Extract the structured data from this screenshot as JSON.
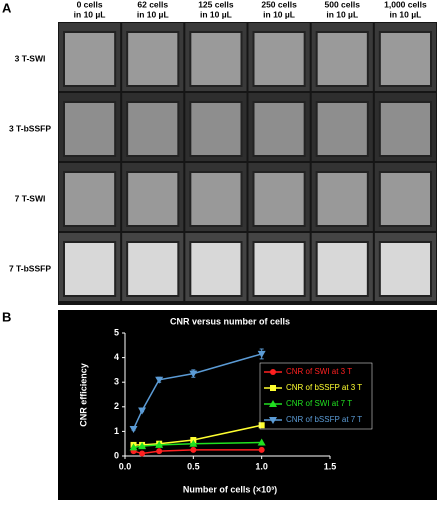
{
  "panel_a": {
    "label": "A",
    "columns": [
      [
        "0 cells",
        "in 10 µL"
      ],
      [
        "62 cells",
        "in 10 µL"
      ],
      [
        "125 cells",
        "in 10 µL"
      ],
      [
        "250 cells",
        "in 10 µL"
      ],
      [
        "500 cells",
        "in 10 µL"
      ],
      [
        "1,000 cells",
        "in 10 µL"
      ]
    ],
    "rows": [
      "3 T-SWI",
      "3 T-bSSFP",
      "7 T-SWI",
      "7 T-bSSFP"
    ]
  },
  "panel_b_label": "B",
  "chart_data": {
    "type": "line",
    "title": "CNR versus number of cells",
    "x_label": "Number of cells (×10³)",
    "y_label": "CNR efficiency",
    "x": [
      0.0625,
      0.125,
      0.25,
      0.5,
      1.0
    ],
    "series": [
      {
        "name": "CNR of SWI at 3 T",
        "color": "#ff2020",
        "marker": "circle",
        "values": [
          0.2,
          0.1,
          0.2,
          0.25,
          0.25
        ]
      },
      {
        "name": "CNR of bSSFP at 3 T",
        "color": "#ffff30",
        "marker": "square",
        "values": [
          0.45,
          0.45,
          0.5,
          0.65,
          1.25
        ]
      },
      {
        "name": "CNR of SWI at 7 T",
        "color": "#20e020",
        "marker": "triangle-up",
        "values": [
          0.35,
          0.4,
          0.45,
          0.5,
          0.55
        ]
      },
      {
        "name": "CNR of bSSFP at 7 T",
        "color": "#5b9bd5",
        "marker": "triangle-down",
        "values": [
          1.1,
          1.85,
          3.1,
          3.35,
          4.15
        ],
        "errors": [
          0.05,
          0.05,
          0.1,
          0.15,
          0.2
        ]
      }
    ],
    "xlim": [
      0,
      1.5
    ],
    "xticks": [
      {
        "value": 0,
        "label": "0.0"
      },
      {
        "value": 0.5,
        "label": "0.5"
      },
      {
        "value": 1,
        "label": "1.0"
      },
      {
        "value": 1.5,
        "label": "1.5"
      }
    ],
    "ylim": [
      0,
      5
    ],
    "yticks": [
      0,
      1,
      2,
      3,
      4,
      5
    ],
    "legend": "right"
  }
}
